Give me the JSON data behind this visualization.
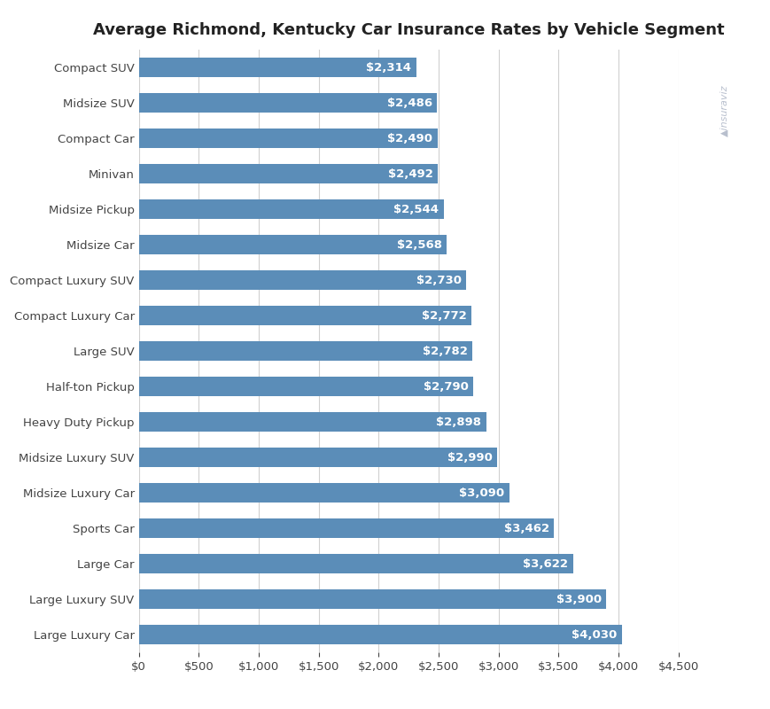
{
  "title": "Average Richmond, Kentucky Car Insurance Rates by Vehicle Segment",
  "categories": [
    "Large Luxury Car",
    "Large Luxury SUV",
    "Large Car",
    "Sports Car",
    "Midsize Luxury Car",
    "Midsize Luxury SUV",
    "Heavy Duty Pickup",
    "Half-ton Pickup",
    "Large SUV",
    "Compact Luxury Car",
    "Compact Luxury SUV",
    "Midsize Car",
    "Midsize Pickup",
    "Minivan",
    "Compact Car",
    "Midsize SUV",
    "Compact SUV"
  ],
  "values": [
    4030,
    3900,
    3622,
    3462,
    3090,
    2990,
    2898,
    2790,
    2782,
    2772,
    2730,
    2568,
    2544,
    2492,
    2490,
    2486,
    2314
  ],
  "bar_color": "#5b8db8",
  "label_color": "#ffffff",
  "background_color": "#ffffff",
  "grid_color": "#d0d0d0",
  "title_color": "#222222",
  "tick_color": "#444444",
  "xlim": [
    0,
    4500
  ],
  "xticks": [
    0,
    500,
    1000,
    1500,
    2000,
    2500,
    3000,
    3500,
    4000,
    4500
  ],
  "bar_height": 0.55,
  "title_fontsize": 13,
  "label_fontsize": 9.5,
  "tick_fontsize": 9.5,
  "category_fontsize": 9.5
}
